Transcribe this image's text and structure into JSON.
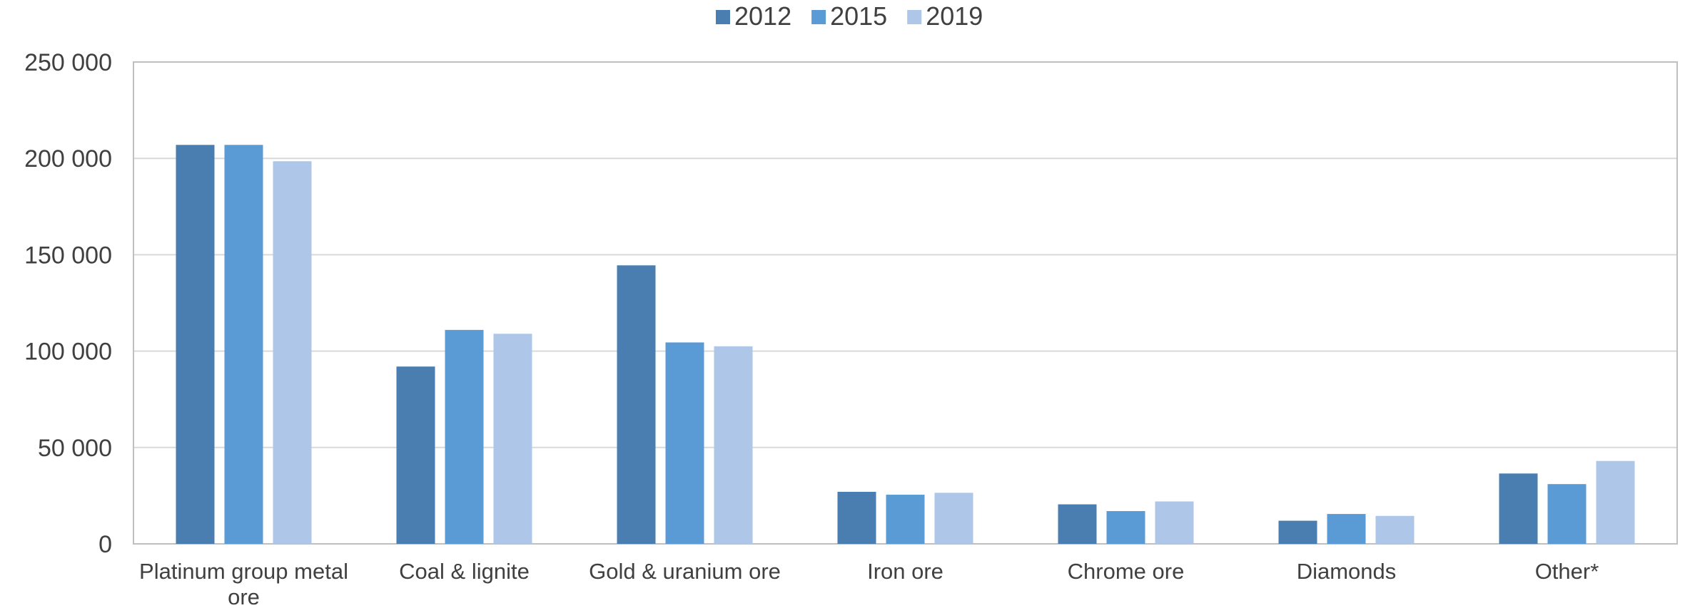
{
  "chart_data": {
    "type": "bar",
    "title": "",
    "xlabel": "",
    "ylabel": "",
    "categories": [
      "Platinum group metal ore",
      "Coal & lignite",
      "Gold & uranium ore",
      "Iron ore",
      "Chrome ore",
      "Diamonds",
      "Other*"
    ],
    "category_lines": [
      [
        "Platinum group metal",
        "ore"
      ],
      [
        "Coal & lignite"
      ],
      [
        "Gold & uranium ore"
      ],
      [
        "Iron ore"
      ],
      [
        "Chrome ore"
      ],
      [
        "Diamonds"
      ],
      [
        "Other*"
      ]
    ],
    "series": [
      {
        "name": "2012",
        "color": "#4a7eb0",
        "values": [
          207000,
          92000,
          144500,
          27000,
          20500,
          12000,
          36500
        ]
      },
      {
        "name": "2015",
        "color": "#5b9bd5",
        "values": [
          207000,
          111000,
          104500,
          25500,
          17000,
          15500,
          31000
        ]
      },
      {
        "name": "2019",
        "color": "#aec6e8",
        "values": [
          198500,
          109000,
          102500,
          26500,
          22000,
          14500,
          43000
        ]
      }
    ],
    "ylim": [
      0,
      250000
    ],
    "yticks": [
      0,
      50000,
      100000,
      150000,
      200000,
      250000
    ],
    "ytick_labels": [
      "0",
      "50 000",
      "100 000",
      "150 000",
      "200 000",
      "250 000"
    ],
    "grid": true,
    "legend_position": "top-center"
  }
}
